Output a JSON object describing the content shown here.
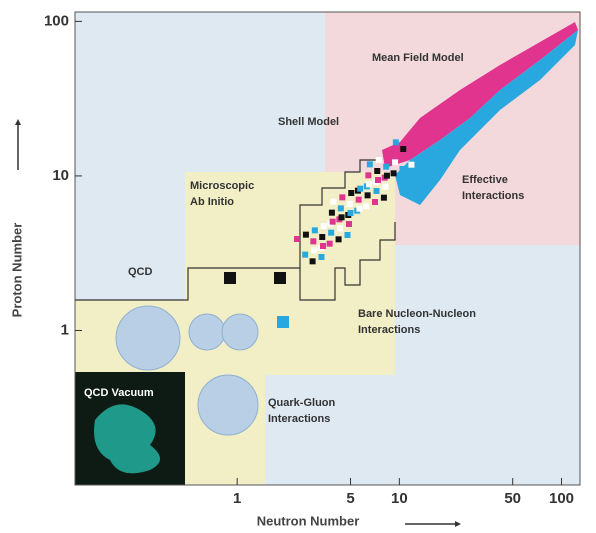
{
  "chart_data": {
    "type": "region-map",
    "xlabel": "Neutron Number",
    "ylabel": "Proton Number",
    "xlim": [
      0.1,
      130
    ],
    "ylim": [
      0.1,
      115
    ],
    "xticks": [
      1,
      5,
      10,
      50,
      100
    ],
    "yticks": [
      1,
      10,
      100
    ],
    "log_x": true,
    "log_y": true,
    "annotations": [
      [
        "Mean Field Model"
      ],
      [
        "Shell Model"
      ],
      [
        "Microscopic",
        "Ab Initio"
      ],
      [
        "QCD"
      ],
      [
        "Effective",
        "Interactions"
      ],
      [
        "Bare Nucleon-Nucleon",
        "Interactions"
      ],
      [
        "Quark-Gluon",
        "Interactions"
      ],
      [
        "QCD Vacuum"
      ]
    ]
  }
}
